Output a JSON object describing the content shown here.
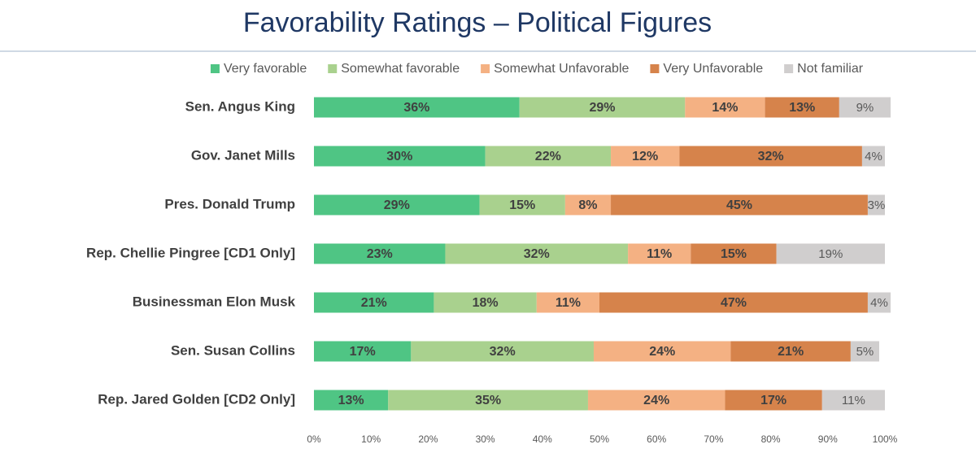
{
  "chart_data": {
    "type": "bar",
    "orientation": "horizontal",
    "stacked": true,
    "legend": "top",
    "title": "Favorability Ratings – Political Figures",
    "categories": [
      "Sen. Angus King",
      "Gov. Janet Mills",
      "Pres. Donald Trump",
      "Rep. Chellie Pingree [CD1 Only]",
      "Businessman Elon Musk",
      "Sen. Susan Collins",
      "Rep. Jared Golden [CD2 Only]"
    ],
    "series": [
      {
        "name": "Very favorable",
        "color": "#4fc584",
        "values": [
          36,
          30,
          29,
          23,
          21,
          17,
          13
        ],
        "value_labels": [
          "36%",
          "30%",
          "29%",
          "23%",
          "21%",
          "17%",
          "13%"
        ]
      },
      {
        "name": "Somewhat favorable",
        "color": "#a9d18e",
        "values": [
          29,
          22,
          15,
          32,
          18,
          32,
          35
        ],
        "value_labels": [
          "29%",
          "22%",
          "15%",
          "32%",
          "18%",
          "32%",
          "35%"
        ]
      },
      {
        "name": "Somewhat Unfavorable",
        "color": "#f4b183",
        "values": [
          14,
          12,
          8,
          11,
          11,
          24,
          24
        ],
        "value_labels": [
          "14%",
          "12%",
          "8%",
          "11%",
          "11%",
          "24%",
          "24%"
        ]
      },
      {
        "name": "Very Unfavorable",
        "color": "#d6834b",
        "values": [
          13,
          32,
          45,
          15,
          47,
          21,
          17
        ],
        "value_labels": [
          "13%",
          "32%",
          "45%",
          "15%",
          "47%",
          "21%",
          "17%"
        ]
      },
      {
        "name": "Not familiar",
        "color": "#d0cece",
        "values": [
          9,
          4,
          3,
          19,
          4,
          5,
          11
        ],
        "value_labels": [
          "9%",
          "4%",
          "3%",
          "19%",
          "4%",
          "5%",
          "11%"
        ]
      }
    ],
    "xlim": [
      0,
      100
    ],
    "xticks": [
      {
        "value": 0,
        "label": "0%"
      },
      {
        "value": 10,
        "label": "10%"
      },
      {
        "value": 20,
        "label": "20%"
      },
      {
        "value": 30,
        "label": "30%"
      },
      {
        "value": 40,
        "label": "40%"
      },
      {
        "value": 50,
        "label": "50%"
      },
      {
        "value": 60,
        "label": "60%"
      },
      {
        "value": 70,
        "label": "70%"
      },
      {
        "value": 80,
        "label": "80%"
      },
      {
        "value": 90,
        "label": "90%"
      },
      {
        "value": 100,
        "label": "100%"
      }
    ]
  }
}
